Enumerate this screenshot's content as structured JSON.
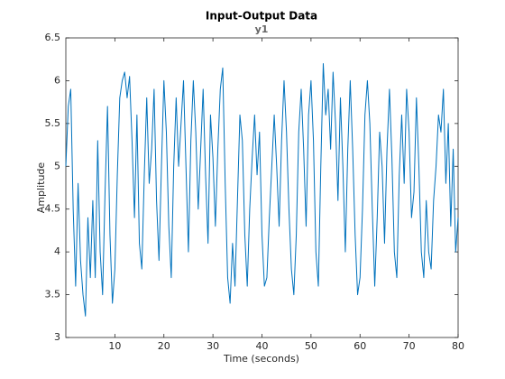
{
  "chart_data": {
    "type": "line",
    "title": "Input-Output Data",
    "subtitle": "y1",
    "xlabel": "Time (seconds)",
    "ylabel": "Amplitude",
    "color": "#0072bd",
    "xlim": [
      0,
      80
    ],
    "xticks": [
      10,
      20,
      30,
      40,
      50,
      60,
      70,
      80
    ],
    "ylim": [
      3,
      6.5
    ],
    "yticks": [
      3,
      3.5,
      4,
      4.5,
      5,
      5.5,
      6,
      6.5
    ],
    "grid": false,
    "x": [
      0,
      0.5,
      1,
      1.5,
      2,
      2.5,
      3,
      3.5,
      4,
      4.5,
      5,
      5.5,
      6,
      6.5,
      7,
      7.5,
      8,
      8.5,
      9,
      9.5,
      10,
      10.5,
      11,
      11.5,
      12,
      12.5,
      13,
      13.5,
      14,
      14.5,
      15,
      15.5,
      16,
      16.5,
      17,
      17.5,
      18,
      18.5,
      19,
      19.5,
      20,
      20.5,
      21,
      21.5,
      22,
      22.5,
      23,
      23.5,
      24,
      24.5,
      25,
      25.5,
      26,
      26.5,
      27,
      27.5,
      28,
      28.5,
      29,
      29.5,
      30,
      30.5,
      31,
      31.5,
      32,
      32.5,
      33,
      33.5,
      34,
      34.5,
      35,
      35.5,
      36,
      36.5,
      37,
      37.5,
      38,
      38.5,
      39,
      39.5,
      40,
      40.5,
      41,
      41.5,
      42,
      42.5,
      43,
      43.5,
      44,
      44.5,
      45,
      45.5,
      46,
      46.5,
      47,
      47.5,
      48,
      48.5,
      49,
      49.5,
      50,
      50.5,
      51,
      51.5,
      52,
      52.5,
      53,
      53.5,
      54,
      54.5,
      55,
      55.5,
      56,
      56.5,
      57,
      57.5,
      58,
      58.5,
      59,
      59.5,
      60,
      60.5,
      61,
      61.5,
      62,
      62.5,
      63,
      63.5,
      64,
      64.5,
      65,
      65.5,
      66,
      66.5,
      67,
      67.5,
      68,
      68.5,
      69,
      69.5,
      70,
      70.5,
      71,
      71.5,
      72,
      72.5,
      73,
      73.5,
      74,
      74.5,
      75,
      75.5,
      76,
      76.5,
      77,
      77.5,
      78,
      78.5,
      79,
      79.5,
      80
    ],
    "values": [
      5.0,
      5.7,
      5.9,
      4.5,
      3.6,
      4.8,
      3.9,
      3.5,
      3.25,
      4.4,
      3.7,
      4.6,
      3.7,
      5.3,
      4.0,
      3.5,
      4.7,
      5.7,
      4.2,
      3.4,
      3.8,
      4.9,
      5.8,
      6.0,
      6.1,
      5.8,
      6.05,
      5.3,
      4.4,
      5.6,
      4.1,
      3.8,
      4.9,
      5.8,
      4.8,
      5.2,
      5.9,
      4.6,
      3.9,
      5.0,
      6.0,
      5.4,
      4.3,
      3.7,
      5.0,
      5.8,
      5.0,
      5.5,
      6.0,
      5.0,
      4.0,
      5.3,
      6.0,
      5.4,
      4.5,
      5.2,
      5.9,
      4.9,
      4.1,
      5.6,
      5.1,
      4.3,
      5.2,
      5.9,
      6.15,
      4.8,
      3.7,
      3.4,
      4.1,
      3.6,
      4.6,
      5.6,
      5.3,
      4.2,
      3.6,
      4.5,
      5.1,
      5.6,
      4.9,
      5.4,
      4.2,
      3.6,
      3.7,
      4.4,
      5.0,
      5.6,
      5.0,
      4.3,
      5.3,
      6.0,
      5.4,
      4.5,
      3.8,
      3.5,
      4.2,
      5.4,
      5.9,
      5.2,
      4.3,
      5.6,
      6.0,
      5.3,
      4.0,
      3.6,
      5.0,
      6.2,
      5.6,
      5.9,
      5.2,
      6.1,
      5.5,
      4.6,
      5.8,
      5.0,
      4.0,
      5.2,
      6.0,
      5.2,
      4.2,
      3.5,
      3.7,
      4.5,
      5.6,
      6.0,
      5.5,
      4.5,
      3.6,
      4.4,
      5.4,
      5.0,
      4.1,
      5.2,
      5.9,
      5.1,
      4.0,
      3.7,
      4.9,
      5.6,
      4.8,
      5.9,
      5.4,
      4.4,
      4.7,
      5.8,
      5.0,
      4.0,
      3.7,
      4.6,
      4.0,
      3.8,
      4.6,
      5.0,
      5.6,
      5.4,
      5.9,
      4.8,
      5.5,
      4.3,
      5.2,
      4.0,
      4.4
    ]
  }
}
